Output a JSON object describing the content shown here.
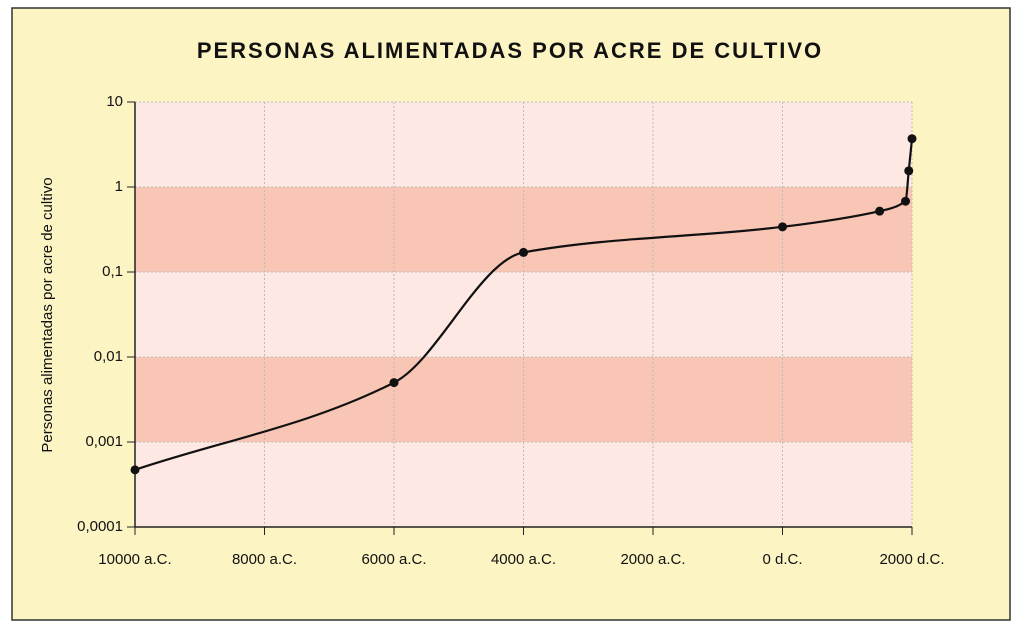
{
  "chart_data": {
    "type": "line",
    "title": "PERSONAS ALIMENTADAS POR ACRE DE CULTIVO",
    "ylabel": "Personas alimentadas por acre de cultivo",
    "x": [
      -10000,
      -6000,
      -4000,
      0,
      1500,
      1900,
      1950,
      2000
    ],
    "series": [
      {
        "color": "#111111",
        "values": [
          0.00047,
          0.005,
          0.17,
          0.34,
          0.52,
          0.68,
          1.55,
          3.7
        ]
      }
    ],
    "xlim": [
      -10000,
      2000
    ],
    "xticks": [
      {
        "value": -10000,
        "label": "10000 a.C."
      },
      {
        "value": -8000,
        "label": "8000 a.C."
      },
      {
        "value": -6000,
        "label": "6000 a.C."
      },
      {
        "value": -4000,
        "label": "4000 a.C."
      },
      {
        "value": -2000,
        "label": "2000 a.C."
      },
      {
        "value": 0,
        "label": "0 d.C."
      },
      {
        "value": 2000,
        "label": "2000 d.C."
      }
    ],
    "ylim": [
      0.0001,
      10
    ],
    "yticks": [
      {
        "value": 0.0001,
        "label": "0,0001"
      },
      {
        "value": 0.001,
        "label": "0,001"
      },
      {
        "value": 0.01,
        "label": "0,01"
      },
      {
        "value": 0.1,
        "label": "0,1"
      },
      1,
      10
    ],
    "log_scale": true,
    "grid": true,
    "band_colors": [
      "#fde8e3",
      "#f9c5b5"
    ]
  }
}
